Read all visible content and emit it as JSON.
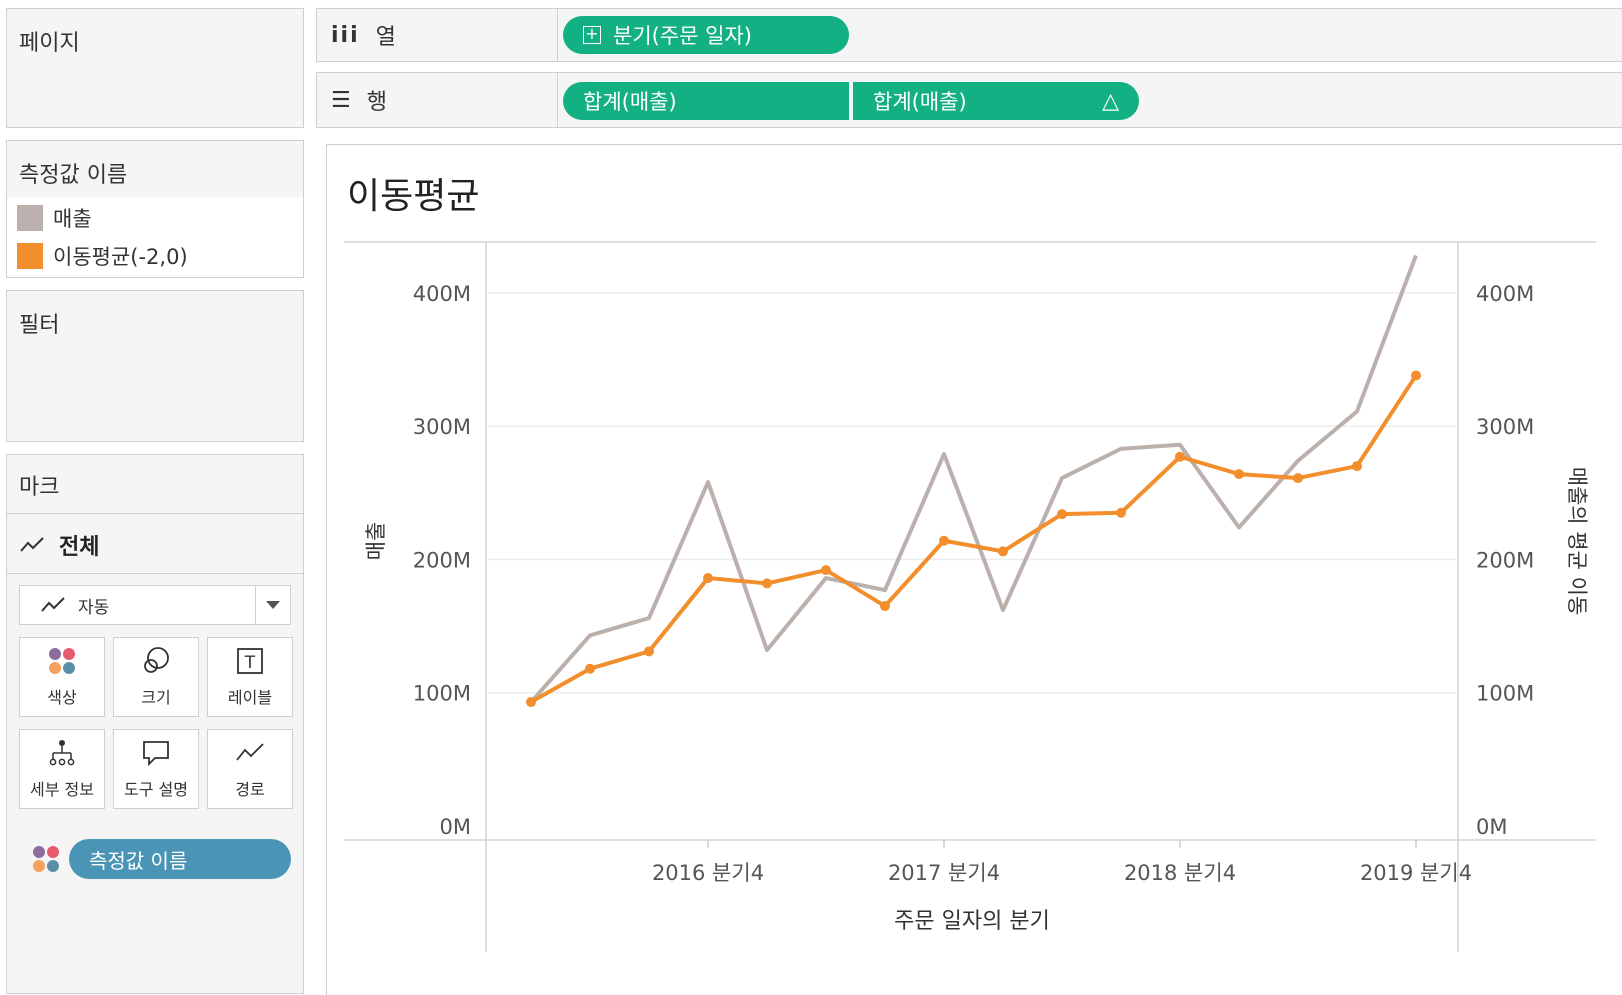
{
  "pages_panel": {
    "title": "페이지"
  },
  "columns_shelf": {
    "label": "열",
    "pill": "분기(주문 일자)"
  },
  "rows_shelf": {
    "label": "행",
    "pills": [
      "합계(매출)",
      "합계(매출)"
    ],
    "delta_symbol": "△"
  },
  "legend": {
    "title": "측정값 이름",
    "items": [
      {
        "label": "매출",
        "color": "#bab0ac"
      },
      {
        "label": "이동평균(-2,0)",
        "color": "#f28e2b"
      }
    ]
  },
  "filters": {
    "title": "필터"
  },
  "marks": {
    "title": "마크",
    "all_label": "전체",
    "mark_type": "자동",
    "buttons": [
      "색상",
      "크기",
      "레이블",
      "세부 정보",
      "도구 설명",
      "경로"
    ],
    "color_pill": "측정값 이름"
  },
  "chart_data": {
    "type": "line",
    "title": "이동평균",
    "xlabel": "주문 일자의 분기",
    "ylabel": "매출",
    "ylabel_right": "매출의 평균 이동",
    "x_tick_labels": [
      "2016 분기4",
      "2017 분기4",
      "2018 분기4",
      "2019 분기4"
    ],
    "y_ticks": [
      "0M",
      "100M",
      "200M",
      "300M",
      "400M"
    ],
    "ylim": [
      0,
      430
    ],
    "x": [
      "2016 Q1",
      "2016 Q2",
      "2016 Q3",
      "2016 Q4",
      "2017 Q1",
      "2017 Q2",
      "2017 Q3",
      "2017 Q4",
      "2018 Q1",
      "2018 Q2",
      "2018 Q3",
      "2018 Q4",
      "2019 Q1",
      "2019 Q2",
      "2019 Q3",
      "2019 Q4"
    ],
    "series": [
      {
        "name": "매출",
        "color": "#bab0ac",
        "values": [
          93,
          143,
          156,
          258,
          132,
          186,
          177,
          279,
          162,
          261,
          283,
          286,
          224,
          274,
          311,
          428
        ]
      },
      {
        "name": "이동평균(-2,0)",
        "color": "#f28e2b",
        "values": [
          93,
          118,
          131,
          186,
          182,
          192,
          165,
          214,
          206,
          234,
          235,
          277,
          264,
          261,
          270,
          338
        ]
      }
    ]
  }
}
